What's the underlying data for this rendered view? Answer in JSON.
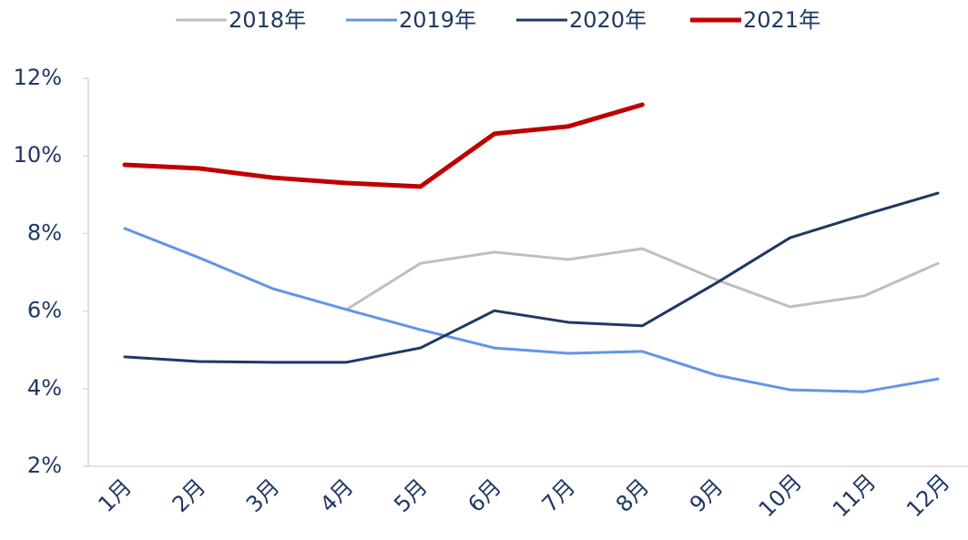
{
  "chart_data": {
    "type": "line",
    "categories": [
      "1月",
      "2月",
      "3月",
      "4月",
      "5月",
      "6月",
      "7月",
      "8月",
      "9月",
      "10月",
      "11月",
      "12月"
    ],
    "series": [
      {
        "name": "2018年",
        "color": "#bfbfbf",
        "values": [
          null,
          null,
          null,
          6.04,
          7.23,
          7.52,
          7.33,
          7.61,
          6.81,
          6.11,
          6.39,
          7.23
        ]
      },
      {
        "name": "2019年",
        "color": "#6495e6",
        "values": [
          8.13,
          7.38,
          6.58,
          6.04,
          5.52,
          5.05,
          4.91,
          4.96,
          4.35,
          3.97,
          3.92,
          4.25
        ]
      },
      {
        "name": "2020年",
        "color": "#1f3864",
        "values": [
          4.82,
          4.7,
          4.68,
          4.68,
          5.05,
          6.01,
          5.71,
          5.62,
          6.72,
          7.89,
          8.48,
          9.04
        ]
      },
      {
        "name": "2021年",
        "color": "#c00000",
        "values": [
          9.77,
          9.68,
          9.44,
          9.3,
          9.21,
          10.57,
          10.76,
          11.32,
          null,
          null,
          null,
          null
        ]
      }
    ],
    "ylim": [
      2,
      12
    ],
    "yticks": [
      {
        "value": 2,
        "label": "2%"
      },
      {
        "value": 4,
        "label": "4%"
      },
      {
        "value": 6,
        "label": "6%"
      },
      {
        "value": 8,
        "label": "8%"
      },
      {
        "value": 10,
        "label": "10%"
      },
      {
        "value": 12,
        "label": "12%"
      }
    ],
    "grid": false,
    "legend": "top"
  }
}
